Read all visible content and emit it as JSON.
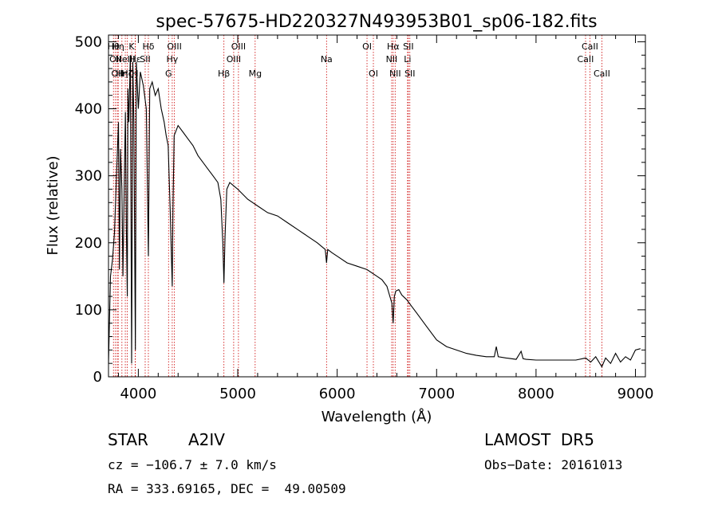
{
  "chart_data": {
    "type": "line",
    "title": "spec-57675-HD220327N493953B01_sp06-182.fits",
    "xlabel": "Wavelength (Å)",
    "ylabel": "Flux (relative)",
    "xlim": [
      3700,
      9100
    ],
    "ylim": [
      0,
      510
    ],
    "xticks": [
      4000,
      5000,
      6000,
      7000,
      8000,
      9000
    ],
    "yticks": [
      0,
      100,
      200,
      300,
      400,
      500
    ],
    "grid": false,
    "series": [
      {
        "x": [
          3700,
          3720,
          3740,
          3760,
          3780,
          3800,
          3810,
          3820,
          3835,
          3845,
          3860,
          3870,
          3880,
          3889,
          3895,
          3905,
          3920,
          3933,
          3945,
          3955,
          3970,
          3980,
          4000,
          4020,
          4050,
          4080,
          4101,
          4115,
          4140,
          4170,
          4200,
          4230,
          4260,
          4280,
          4300,
          4320,
          4335,
          4341,
          4348,
          4360,
          4400,
          4450,
          4500,
          4550,
          4600,
          4650,
          4700,
          4750,
          4800,
          4830,
          4850,
          4861,
          4872,
          4890,
          4920,
          4960,
          5000,
          5100,
          5200,
          5300,
          5400,
          5500,
          5600,
          5700,
          5800,
          5880,
          5893,
          5905,
          5950,
          6000,
          6100,
          6200,
          6300,
          6400,
          6450,
          6500,
          6530,
          6550,
          6563,
          6575,
          6590,
          6620,
          6650,
          6700,
          6750,
          6800,
          6900,
          7000,
          7100,
          7200,
          7300,
          7400,
          7500,
          7580,
          7600,
          7620,
          7700,
          7800,
          7850,
          7870,
          7900,
          8000,
          8100,
          8200,
          8300,
          8400,
          8500,
          8550,
          8600,
          8662,
          8700,
          8750,
          8800,
          8850,
          8900,
          8950,
          9000,
          9050
        ],
        "y": [
          20,
          150,
          175,
          215,
          300,
          380,
          160,
          340,
          280,
          150,
          300,
          395,
          220,
          120,
          430,
          380,
          480,
          20,
          470,
          380,
          40,
          470,
          400,
          455,
          435,
          400,
          180,
          430,
          440,
          420,
          430,
          400,
          380,
          360,
          345,
          250,
          170,
          135,
          250,
          360,
          375,
          365,
          355,
          345,
          330,
          320,
          310,
          300,
          290,
          265,
          200,
          140,
          210,
          280,
          290,
          285,
          280,
          265,
          255,
          245,
          240,
          230,
          220,
          210,
          200,
          190,
          170,
          190,
          185,
          180,
          170,
          165,
          160,
          150,
          145,
          135,
          120,
          110,
          80,
          120,
          128,
          130,
          122,
          115,
          105,
          95,
          75,
          55,
          45,
          40,
          35,
          32,
          30,
          30,
          45,
          30,
          28,
          26,
          38,
          27,
          26,
          25,
          25,
          25,
          25,
          25,
          28,
          22,
          30,
          15,
          28,
          20,
          35,
          22,
          30,
          25,
          40,
          42
        ]
      }
    ],
    "line_markers": [
      {
        "wavelength": 3750,
        "label": "Hθ",
        "row": 0
      },
      {
        "wavelength": 3770,
        "label": "OII",
        "row": 1
      },
      {
        "wavelength": 3788,
        "label": "OII",
        "row": 2
      },
      {
        "wavelength": 3798,
        "label": "Hη",
        "row": 0
      },
      {
        "wavelength": 3835,
        "label": "Hη",
        "row": 2
      },
      {
        "wavelength": 3869,
        "label": "NeIII",
        "row": 1
      },
      {
        "wavelength": 3889,
        "label": "Hζ",
        "row": 2
      },
      {
        "wavelength": 3933,
        "label": "K",
        "row": 0
      },
      {
        "wavelength": 3968,
        "label": "H",
        "row": 2
      },
      {
        "wavelength": 3970,
        "label": "Hε",
        "row": 1
      },
      {
        "wavelength": 4101,
        "label": "Hδ",
        "row": 0
      },
      {
        "wavelength": 4069,
        "label": "SII",
        "row": 1
      },
      {
        "wavelength": 4304,
        "label": "G",
        "row": 2
      },
      {
        "wavelength": 4341,
        "label": "Hγ",
        "row": 1
      },
      {
        "wavelength": 4363,
        "label": "OIII",
        "row": 0
      },
      {
        "wavelength": 4861,
        "label": "Hβ",
        "row": 2
      },
      {
        "wavelength": 4959,
        "label": "OIII",
        "row": 1
      },
      {
        "wavelength": 5007,
        "label": "OIII",
        "row": 0
      },
      {
        "wavelength": 5175,
        "label": "Mg",
        "row": 2
      },
      {
        "wavelength": 5893,
        "label": "Na",
        "row": 1
      },
      {
        "wavelength": 6300,
        "label": "OI",
        "row": 0
      },
      {
        "wavelength": 6364,
        "label": "OI",
        "row": 2
      },
      {
        "wavelength": 6548,
        "label": "NII",
        "row": 1
      },
      {
        "wavelength": 6563,
        "label": "Hα",
        "row": 0
      },
      {
        "wavelength": 6583,
        "label": "NII",
        "row": 2
      },
      {
        "wavelength": 6708,
        "label": "Li",
        "row": 1
      },
      {
        "wavelength": 6716,
        "label": "SII",
        "row": 0
      },
      {
        "wavelength": 6731,
        "label": "SII",
        "row": 2
      },
      {
        "wavelength": 8498,
        "label": "CaII",
        "row": 1
      },
      {
        "wavelength": 8542,
        "label": "CaII",
        "row": 0
      },
      {
        "wavelength": 8662,
        "label": "CaII",
        "row": 2
      }
    ]
  },
  "info": {
    "object_class": "STAR",
    "subclass": "A2IV",
    "survey": "LAMOST  DR5",
    "cz": "cz = −106.7 ± 7.0 km/s",
    "obs_date": "Obs−Date: 20161013",
    "coords": "RA = 333.69165, DEC =  49.00509"
  },
  "colors": {
    "spectrum": "#000000",
    "marker_line": "#cc0000",
    "text": "#000000"
  }
}
